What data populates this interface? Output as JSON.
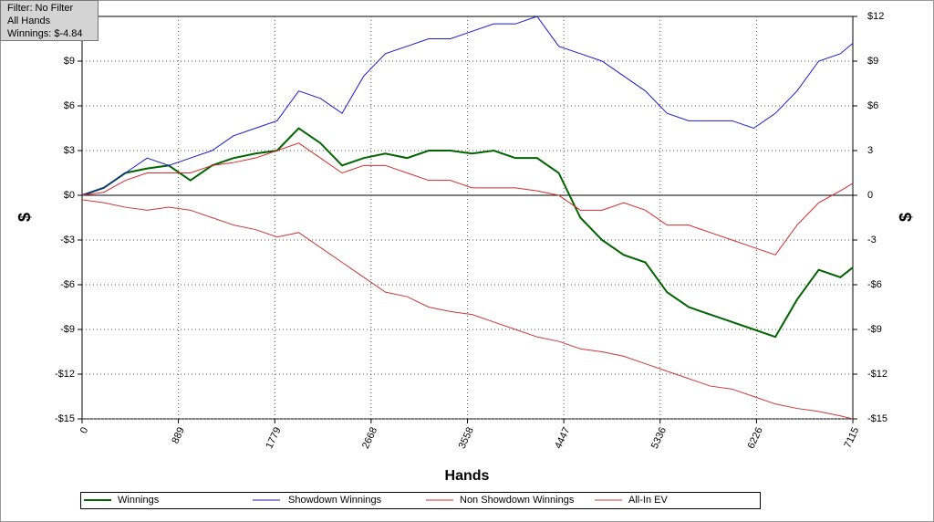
{
  "chart_data": {
    "type": "line",
    "annotations": [
      "Filter: No Filter",
      "All Hands",
      "Winnings: $-4.84"
    ],
    "xlabel": "Hands",
    "ylabel": "$",
    "y2label": "$",
    "x": [
      0,
      200,
      400,
      600,
      800,
      1000,
      1200,
      1400,
      1600,
      1800,
      2000,
      2200,
      2400,
      2600,
      2800,
      3000,
      3200,
      3400,
      3600,
      3800,
      4000,
      4200,
      4400,
      4600,
      4800,
      5000,
      5200,
      5400,
      5600,
      5800,
      6000,
      6200,
      6400,
      6600,
      6800,
      7000,
      7115
    ],
    "series": [
      {
        "name": "Winnings",
        "color": "#006400",
        "width": 2,
        "values": [
          0,
          0.5,
          1.5,
          1.8,
          2,
          1,
          2,
          2.5,
          2.8,
          3,
          4.5,
          3.5,
          2,
          2.5,
          2.8,
          2.5,
          3,
          3,
          2.8,
          3,
          2.5,
          2.5,
          1.5,
          -1.5,
          -3,
          -4,
          -4.5,
          -6.5,
          -7.5,
          -8,
          -8.5,
          -9,
          -9.5,
          -7,
          -5,
          -5.5,
          -4.84
        ]
      },
      {
        "name": "Showdown Winnings",
        "color": "#1a1acc",
        "width": 1,
        "values": [
          0,
          0.5,
          1.5,
          2.5,
          2,
          2.5,
          3,
          4,
          4.5,
          5,
          7,
          6.5,
          5.5,
          8,
          9.5,
          10,
          10.5,
          10.5,
          11,
          11.5,
          11.5,
          12,
          10,
          9.5,
          9,
          8,
          7,
          5.5,
          5,
          5,
          5,
          4.5,
          5.5,
          7,
          9,
          9.5,
          10.2
        ]
      },
      {
        "name": "Non Showdown Winnings",
        "color": "#d42a2a",
        "width": 1,
        "values": [
          0,
          0.2,
          1,
          1.5,
          1.5,
          1.5,
          2,
          2.2,
          2.5,
          3,
          3.5,
          2.5,
          1.5,
          2,
          2,
          1.5,
          1,
          1,
          0.5,
          0.5,
          0.5,
          0.3,
          0,
          -1,
          -1,
          -0.5,
          -1,
          -2,
          -2,
          -2.5,
          -3,
          -3.5,
          -4,
          -2,
          -0.5,
          0.3,
          0.8
        ]
      },
      {
        "name": "All-In EV",
        "color": "#c83838",
        "width": 1,
        "values": [
          -0.3,
          -0.5,
          -0.8,
          -1,
          -0.8,
          -1,
          -1.5,
          -2,
          -2.3,
          -2.8,
          -2.5,
          -3.5,
          -4.5,
          -5.5,
          -6.5,
          -6.8,
          -7.5,
          -7.8,
          -8,
          -8.5,
          -9,
          -9.5,
          -9.8,
          -10.3,
          -10.5,
          -10.8,
          -11.3,
          -11.8,
          -12.3,
          -12.8,
          -13,
          -13.5,
          -14,
          -14.3,
          -14.5,
          -14.8,
          -15
        ]
      }
    ],
    "xlim": [
      0,
      7115
    ],
    "xticks": [
      0,
      889,
      1779,
      2668,
      3558,
      4447,
      5336,
      6226,
      7115
    ],
    "ylim": [
      -15,
      12
    ],
    "yticks": [
      {
        "value": -15,
        "label": "-$15"
      },
      {
        "value": -12,
        "label": "-$12"
      },
      {
        "value": -9,
        "label": "-$9"
      },
      {
        "value": -6,
        "label": "-$6"
      },
      {
        "value": -3,
        "label": "-$3"
      },
      {
        "value": 0,
        "label": "$0"
      },
      {
        "value": 3,
        "label": "$3"
      },
      {
        "value": 6,
        "label": "$6"
      },
      {
        "value": 9,
        "label": "$9"
      }
    ],
    "y2lim": [
      -15,
      12
    ],
    "y2ticks": [
      {
        "value": -15,
        "label": "-$15"
      },
      {
        "value": -12,
        "label": "-$12"
      },
      {
        "value": -9,
        "label": "-$9"
      },
      {
        "value": -6,
        "label": "-$6"
      },
      {
        "value": -3,
        "label": "-3"
      },
      {
        "value": 0,
        "label": "0"
      },
      {
        "value": 3,
        "label": "3"
      },
      {
        "value": 6,
        "label": "$6"
      },
      {
        "value": 9,
        "label": "$9"
      },
      {
        "value": 12,
        "label": "$12"
      }
    ],
    "grid": true
  }
}
